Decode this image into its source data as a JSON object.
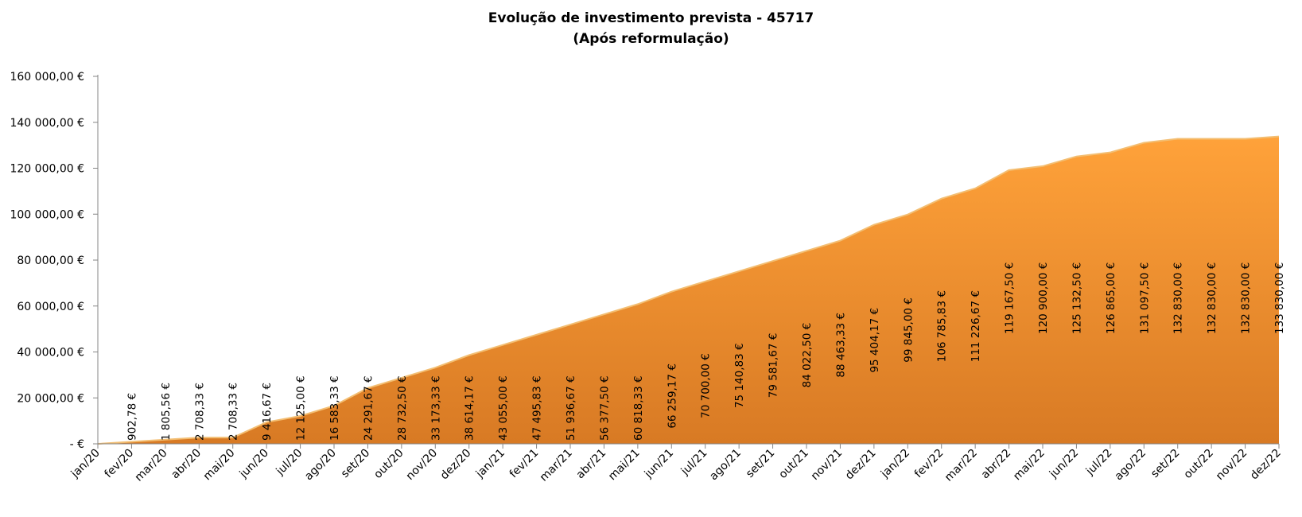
{
  "chart_data": {
    "type": "area",
    "title": "Evolução de investimento prevista - 45717",
    "subtitle": "(Após reformulação)",
    "xlabel": "",
    "ylabel": "",
    "ylim": [
      0,
      160000
    ],
    "grid": false,
    "legend": "none",
    "y_ticks": [
      {
        "value": 0,
        "label": "-   €"
      },
      {
        "value": 20000,
        "label": "20 000,00 €"
      },
      {
        "value": 40000,
        "label": "40 000,00 €"
      },
      {
        "value": 60000,
        "label": "60 000,00 €"
      },
      {
        "value": 80000,
        "label": "80 000,00 €"
      },
      {
        "value": 100000,
        "label": "100 000,00 €"
      },
      {
        "value": 120000,
        "label": "120 000,00 €"
      },
      {
        "value": 140000,
        "label": "140 000,00 €"
      },
      {
        "value": 160000,
        "label": "160 000,00 €"
      }
    ],
    "categories": [
      "jan/20",
      "fev/20",
      "mar/20",
      "abr/20",
      "mai/20",
      "jun/20",
      "jul/20",
      "ago/20",
      "set/20",
      "out/20",
      "nov/20",
      "dez/20",
      "jan/21",
      "fev/21",
      "mar/21",
      "abr/21",
      "mai/21",
      "jun/21",
      "jul/21",
      "ago/21",
      "set/21",
      "out/21",
      "nov/21",
      "dez/21",
      "jan/22",
      "fev/22",
      "mar/22",
      "abr/22",
      "mai/22",
      "jun/22",
      "jul/22",
      "ago/22",
      "set/22",
      "out/22",
      "nov/22",
      "dez/22"
    ],
    "values": [
      0,
      902.78,
      1805.56,
      2708.33,
      2708.33,
      9416.67,
      12125.0,
      16583.33,
      24291.67,
      28732.5,
      33173.33,
      38614.17,
      43055.0,
      47495.83,
      51936.67,
      56377.5,
      60818.33,
      66259.17,
      70700.0,
      75140.83,
      79581.67,
      84022.5,
      88463.33,
      95404.17,
      99845.0,
      106785.83,
      111226.67,
      119167.5,
      120900.0,
      125132.5,
      126865.0,
      131097.5,
      132830.0,
      132830.0,
      132830.0,
      133830.0
    ],
    "data_labels": [
      "",
      "902,78 €",
      "1 805,56 €",
      "2 708,33 €",
      "2 708,33 €",
      "9 416,67 €",
      "12 125,00 €",
      "16 583,33 €",
      "24 291,67 €",
      "28 732,50 €",
      "33 173,33 €",
      "38 614,17 €",
      "43 055,00 €",
      "47 495,83 €",
      "51 936,67 €",
      "56 377,50 €",
      "60 818,33 €",
      "66 259,17 €",
      "70 700,00 €",
      "75 140,83 €",
      "79 581,67 €",
      "84 022,50 €",
      "88 463,33 €",
      "95 404,17 €",
      "99 845,00 €",
      "106 785,83 €",
      "111 226,67 €",
      "119 167,50 €",
      "120 900,00 €",
      "125 132,50 €",
      "126 865,00 €",
      "131 097,50 €",
      "132 830,00 €",
      "132 830,00 €",
      "132 830,00 €",
      "133 830,00 €"
    ],
    "colors": {
      "fill_top": "#FFA23A",
      "fill_bottom": "#D87A24",
      "edge": "#F3BE72",
      "axis": "#868686"
    }
  }
}
